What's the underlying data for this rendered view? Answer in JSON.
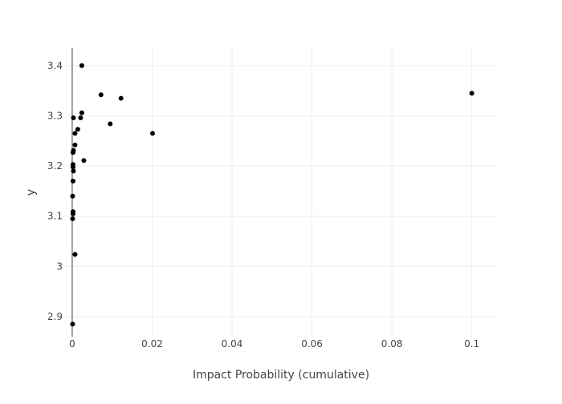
{
  "chart_data": {
    "type": "scatter",
    "title": "",
    "xlabel": "Impact Probability (cumulative)",
    "ylabel": "y",
    "xlim": [
      -0.002,
      0.1065
    ],
    "ylim": [
      2.86,
      3.435
    ],
    "x_ticks": [
      0,
      0.02,
      0.04,
      0.06,
      0.08,
      0.1
    ],
    "x_tick_labels": [
      "0",
      "0.02",
      "0.04",
      "0.06",
      "0.08",
      "0.1"
    ],
    "y_ticks": [
      2.9,
      3.0,
      3.1,
      3.2,
      3.3,
      3.4
    ],
    "y_tick_labels": [
      "2.9",
      "3",
      "3.1",
      "3.2",
      "3.3",
      "3.4"
    ],
    "grid": true,
    "colors": {
      "point": "#000000",
      "grid": "#eeeeee",
      "zero_line": "#444444",
      "text": "#444444"
    },
    "series": [
      {
        "points": [
          {
            "x": 0.0024,
            "y": 3.4
          },
          {
            "x": 0.0072,
            "y": 3.342
          },
          {
            "x": 0.0122,
            "y": 3.335
          },
          {
            "x": 0.1,
            "y": 3.345
          },
          {
            "x": 0.0024,
            "y": 3.306
          },
          {
            "x": 0.0021,
            "y": 3.296
          },
          {
            "x": 0.0003,
            "y": 3.296
          },
          {
            "x": 0.0095,
            "y": 3.284
          },
          {
            "x": 0.0014,
            "y": 3.273
          },
          {
            "x": 0.0007,
            "y": 3.265
          },
          {
            "x": 0.0201,
            "y": 3.265
          },
          {
            "x": 0.0007,
            "y": 3.242
          },
          {
            "x": 0.0003,
            "y": 3.231
          },
          {
            "x": 0.0002,
            "y": 3.227
          },
          {
            "x": 0.0029,
            "y": 3.211
          },
          {
            "x": 0.0002,
            "y": 3.203
          },
          {
            "x": 0.0002,
            "y": 3.198
          },
          {
            "x": 0.0003,
            "y": 3.19
          },
          {
            "x": 0.0002,
            "y": 3.17
          },
          {
            "x": 0.0001,
            "y": 3.14
          },
          {
            "x": 0.0002,
            "y": 3.109
          },
          {
            "x": 0.0002,
            "y": 3.105
          },
          {
            "x": 0.0001,
            "y": 3.095
          },
          {
            "x": 0.0007,
            "y": 3.024
          },
          {
            "x": 0.0001,
            "y": 2.885
          }
        ]
      }
    ]
  }
}
